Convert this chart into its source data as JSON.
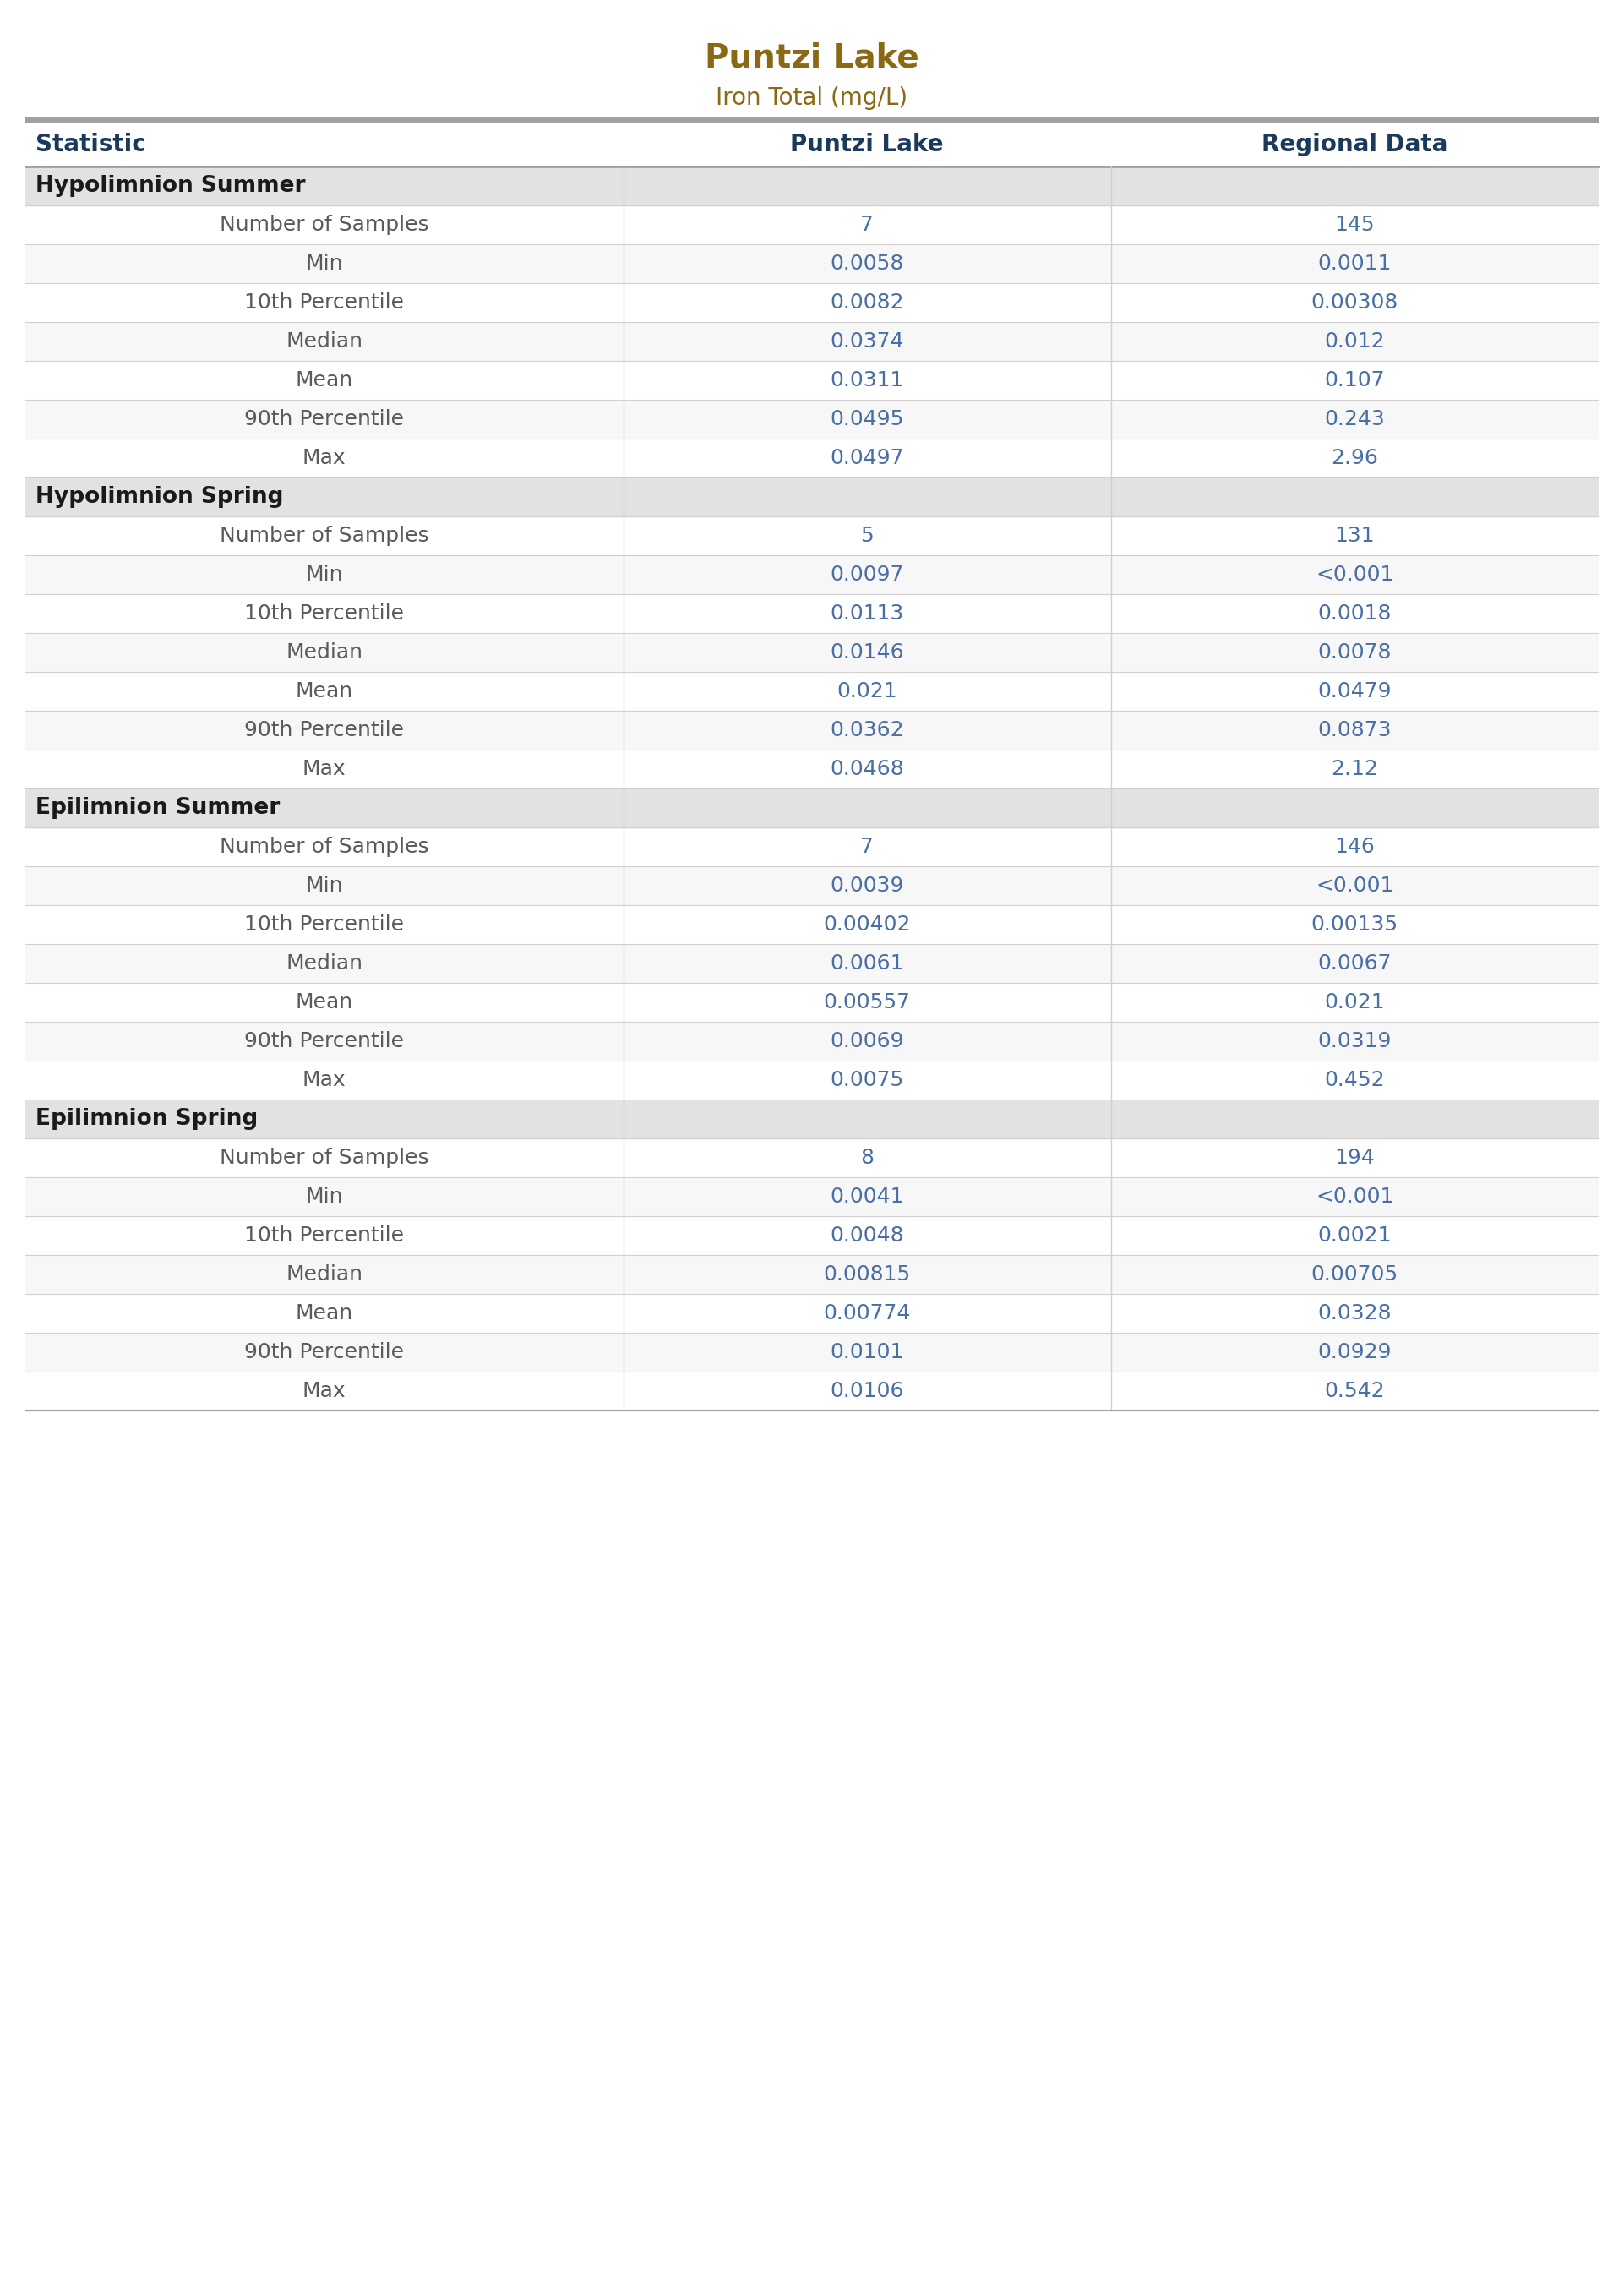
{
  "title": "Puntzi Lake",
  "subtitle": "Iron Total (mg/L)",
  "col_headers": [
    "Statistic",
    "Puntzi Lake",
    "Regional Data"
  ],
  "sections": [
    {
      "name": "Hypolimnion Summer",
      "rows": [
        [
          "Number of Samples",
          "7",
          "145"
        ],
        [
          "Min",
          "0.0058",
          "0.0011"
        ],
        [
          "10th Percentile",
          "0.0082",
          "0.00308"
        ],
        [
          "Median",
          "0.0374",
          "0.012"
        ],
        [
          "Mean",
          "0.0311",
          "0.107"
        ],
        [
          "90th Percentile",
          "0.0495",
          "0.243"
        ],
        [
          "Max",
          "0.0497",
          "2.96"
        ]
      ]
    },
    {
      "name": "Hypolimnion Spring",
      "rows": [
        [
          "Number of Samples",
          "5",
          "131"
        ],
        [
          "Min",
          "0.0097",
          "<0.001"
        ],
        [
          "10th Percentile",
          "0.0113",
          "0.0018"
        ],
        [
          "Median",
          "0.0146",
          "0.0078"
        ],
        [
          "Mean",
          "0.021",
          "0.0479"
        ],
        [
          "90th Percentile",
          "0.0362",
          "0.0873"
        ],
        [
          "Max",
          "0.0468",
          "2.12"
        ]
      ]
    },
    {
      "name": "Epilimnion Summer",
      "rows": [
        [
          "Number of Samples",
          "7",
          "146"
        ],
        [
          "Min",
          "0.0039",
          "<0.001"
        ],
        [
          "10th Percentile",
          "0.00402",
          "0.00135"
        ],
        [
          "Median",
          "0.0061",
          "0.0067"
        ],
        [
          "Mean",
          "0.00557",
          "0.021"
        ],
        [
          "90th Percentile",
          "0.0069",
          "0.0319"
        ],
        [
          "Max",
          "0.0075",
          "0.452"
        ]
      ]
    },
    {
      "name": "Epilimnion Spring",
      "rows": [
        [
          "Number of Samples",
          "8",
          "194"
        ],
        [
          "Min",
          "0.0041",
          "<0.001"
        ],
        [
          "10th Percentile",
          "0.0048",
          "0.0021"
        ],
        [
          "Median",
          "0.00815",
          "0.00705"
        ],
        [
          "Mean",
          "0.00774",
          "0.0328"
        ],
        [
          "90th Percentile",
          "0.0101",
          "0.0929"
        ],
        [
          "Max",
          "0.0106",
          "0.542"
        ]
      ]
    }
  ],
  "title_color": "#8B6914",
  "subtitle_color": "#8B6914",
  "header_text_color": "#1a3a5c",
  "section_bg_color": "#e2e2e2",
  "section_text_color": "#1a1a1a",
  "row_bg_white": "#ffffff",
  "row_bg_light": "#f7f7f7",
  "stat_text_color": "#5a5a5a",
  "value_text_color": "#4a6fa5",
  "divider_color": "#d0d0d0",
  "top_bar_color": "#a0a0a0",
  "title_fontsize": 28,
  "subtitle_fontsize": 20,
  "header_fontsize": 20,
  "section_fontsize": 19,
  "row_fontsize": 18
}
